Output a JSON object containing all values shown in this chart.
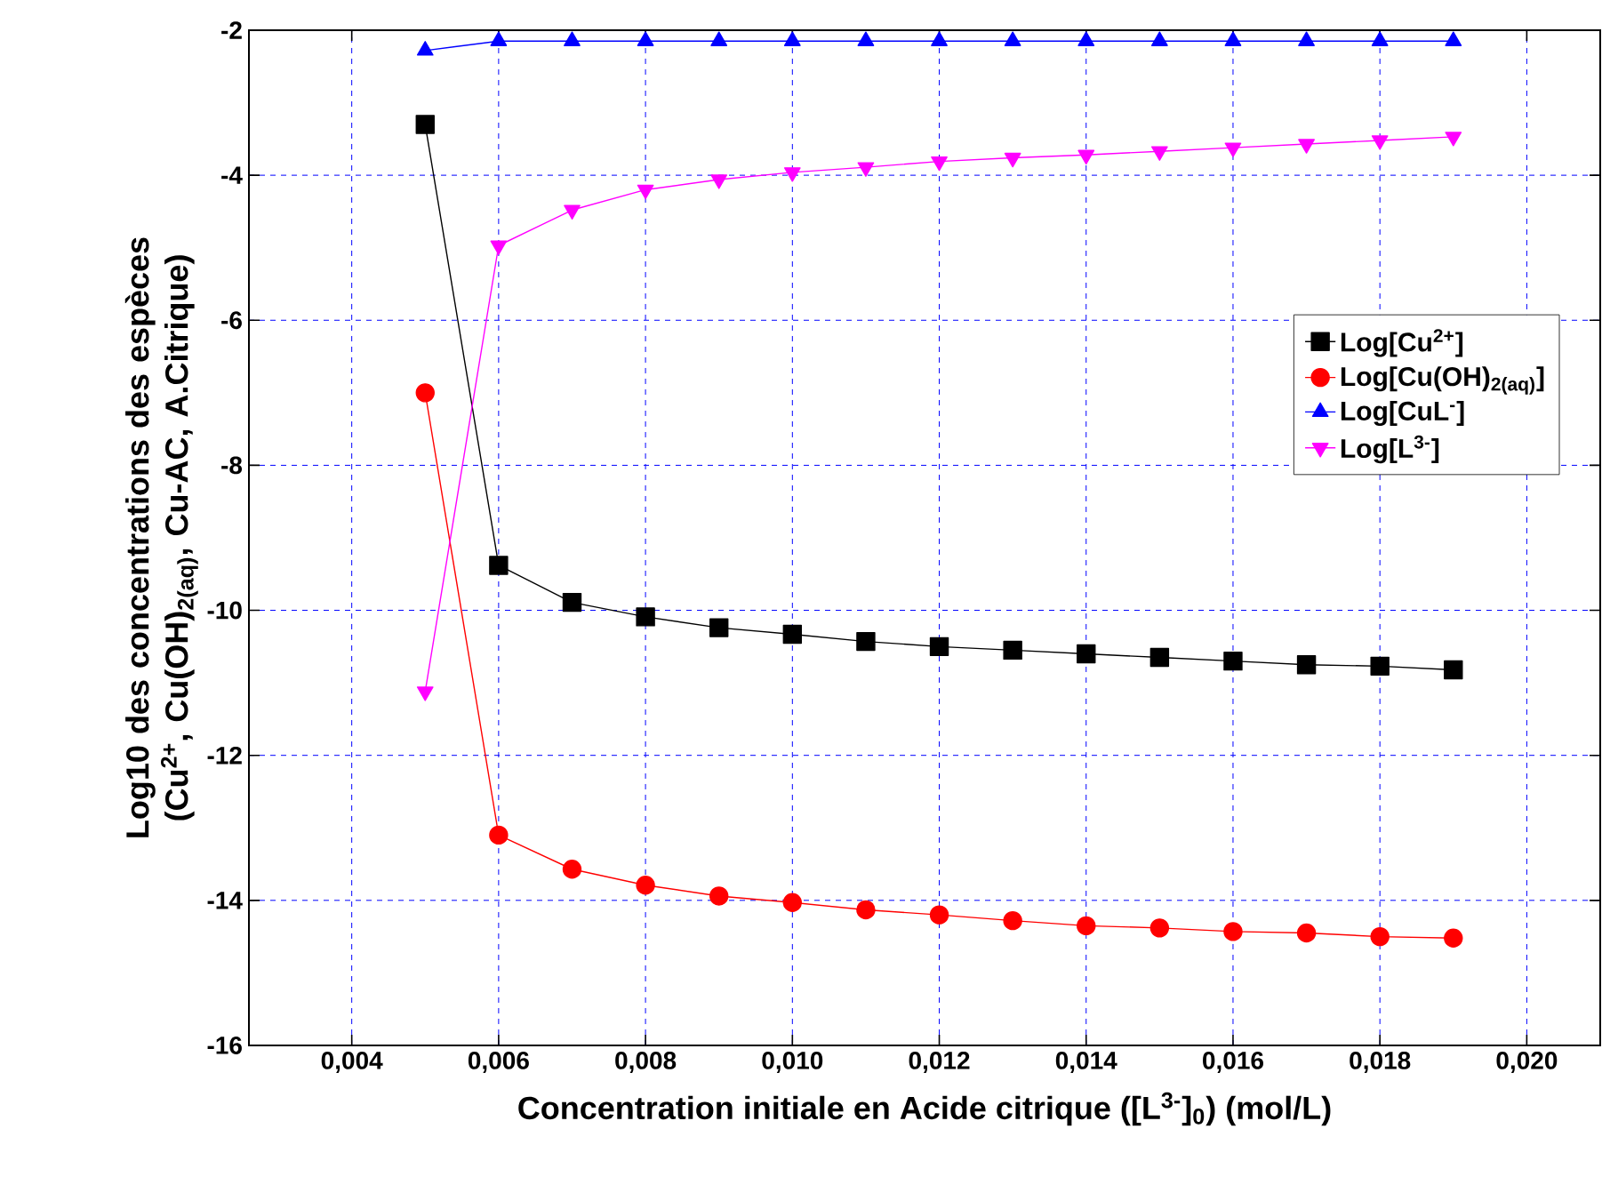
{
  "chart_data": {
    "type": "line",
    "xlabel": "Concentration initiale en Acide citrique ([L$^{3-}$]$_{0}$) (mol/L)",
    "ylabel": "Log10 des concentrations des espèces (Cu$^{2+}$, Cu(OH)$_{2(aq)}$, Cu-AC, A.Citrique)",
    "x": [
      0.005,
      0.006,
      0.007,
      0.008,
      0.009,
      0.01,
      0.011,
      0.012,
      0.013,
      0.014,
      0.015,
      0.016,
      0.017,
      0.018,
      0.019
    ],
    "series": [
      {
        "name": "Log[Cu$^{2+}$]",
        "color": "#000000",
        "marker": "square",
        "values": [
          -3.3,
          -9.38,
          -9.89,
          -10.09,
          -10.24,
          -10.33,
          -10.43,
          -10.5,
          -10.55,
          -10.6,
          -10.65,
          -10.7,
          -10.75,
          -10.77,
          -10.82
        ]
      },
      {
        "name": "Log[Cu(OH)$_{2(aq)}$]",
        "color": "#ff0000",
        "marker": "circle",
        "values": [
          -7.0,
          -13.1,
          -13.57,
          -13.79,
          -13.94,
          -14.03,
          -14.13,
          -14.2,
          -14.28,
          -14.35,
          -14.38,
          -14.43,
          -14.45,
          -14.5,
          -14.52
        ]
      },
      {
        "name": "Log[CuL$^{-}$]",
        "color": "#0000ff",
        "marker": "triangle",
        "values": [
          -2.28,
          -2.15,
          -2.15,
          -2.15,
          -2.15,
          -2.15,
          -2.15,
          -2.15,
          -2.15,
          -2.15,
          -2.15,
          -2.15,
          -2.15,
          -2.15,
          -2.15
        ]
      },
      {
        "name": "Log[L$^{3-}$]",
        "color": "#ff00ff",
        "marker": "triangle-down",
        "values": [
          -11.12,
          -4.97,
          -4.48,
          -4.2,
          -4.06,
          -3.96,
          -3.89,
          -3.81,
          -3.76,
          -3.72,
          -3.67,
          -3.62,
          -3.57,
          -3.52,
          -3.47
        ]
      }
    ],
    "xlim": [
      0.0026,
      0.021
    ],
    "xticks": [
      {
        "value": 0.004,
        "label": "0,004"
      },
      {
        "value": 0.006,
        "label": "0,006"
      },
      {
        "value": 0.008,
        "label": "0,008"
      },
      {
        "value": 0.01,
        "label": "0,010"
      },
      {
        "value": 0.012,
        "label": "0,012"
      },
      {
        "value": 0.014,
        "label": "0,014"
      },
      {
        "value": 0.016,
        "label": "0,016"
      },
      {
        "value": 0.018,
        "label": "0,018"
      },
      {
        "value": 0.02,
        "label": "0,020"
      }
    ],
    "ylim": [
      -16,
      -2
    ],
    "yticks": [
      -16,
      -14,
      -12,
      -10,
      -8,
      -6,
      -4,
      -2
    ],
    "grid": true,
    "legend": "right",
    "line_style": "solid"
  }
}
